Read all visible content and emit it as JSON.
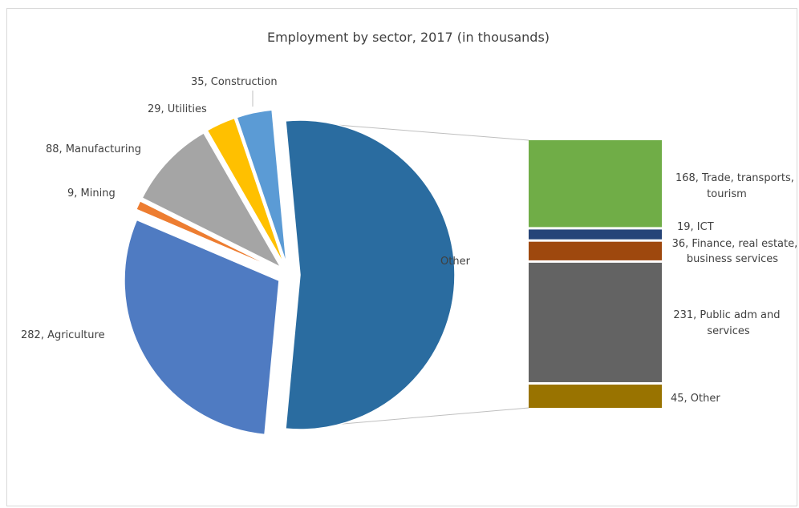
{
  "chart_data": {
    "type": "pie",
    "subtype": "bar-of-pie",
    "title": "Employment by sector, 2017 (in thousands)",
    "pie_slices": [
      {
        "label": "Agriculture",
        "value": 282,
        "color": "#4f7bc2"
      },
      {
        "label": "Mining",
        "value": 9,
        "color": "#ed7d31"
      },
      {
        "label": "Manufacturing",
        "value": 88,
        "color": "#a5a5a5"
      },
      {
        "label": "Utilities",
        "value": 29,
        "color": "#ffc000"
      },
      {
        "label": "Construction",
        "value": 35,
        "color": "#5b9bd5"
      },
      {
        "label": "Other",
        "value": 499,
        "color": "#2a6ca0"
      }
    ],
    "bar_segments": [
      {
        "label": "Trade, transports, tourism",
        "value": 168,
        "color": "#70ad47"
      },
      {
        "label": "ICT",
        "value": 19,
        "color": "#264478"
      },
      {
        "label": "Finance, real estate, business services",
        "value": 36,
        "color": "#9e480e"
      },
      {
        "label": "Public adm and services",
        "value": 231,
        "color": "#636363"
      },
      {
        "label": "Other",
        "value": 45,
        "color": "#997300"
      }
    ],
    "labels": {
      "agriculture": "282, Agriculture",
      "mining": "9, Mining",
      "manufacturing": "88, Manufacturing",
      "utilities": "29, Utilities",
      "construction": "35, Construction",
      "other_slice": "Other",
      "trade_line1": "168, Trade, transports,",
      "trade_line2": "tourism",
      "ict": "19, ICT",
      "finance_line1": "36, Finance, real estate,",
      "finance_line2": "business services",
      "public_line1": "231, Public adm and",
      "public_line2": "services",
      "bar_other": "45, Other"
    },
    "connector_color": "#bfbfbf"
  }
}
